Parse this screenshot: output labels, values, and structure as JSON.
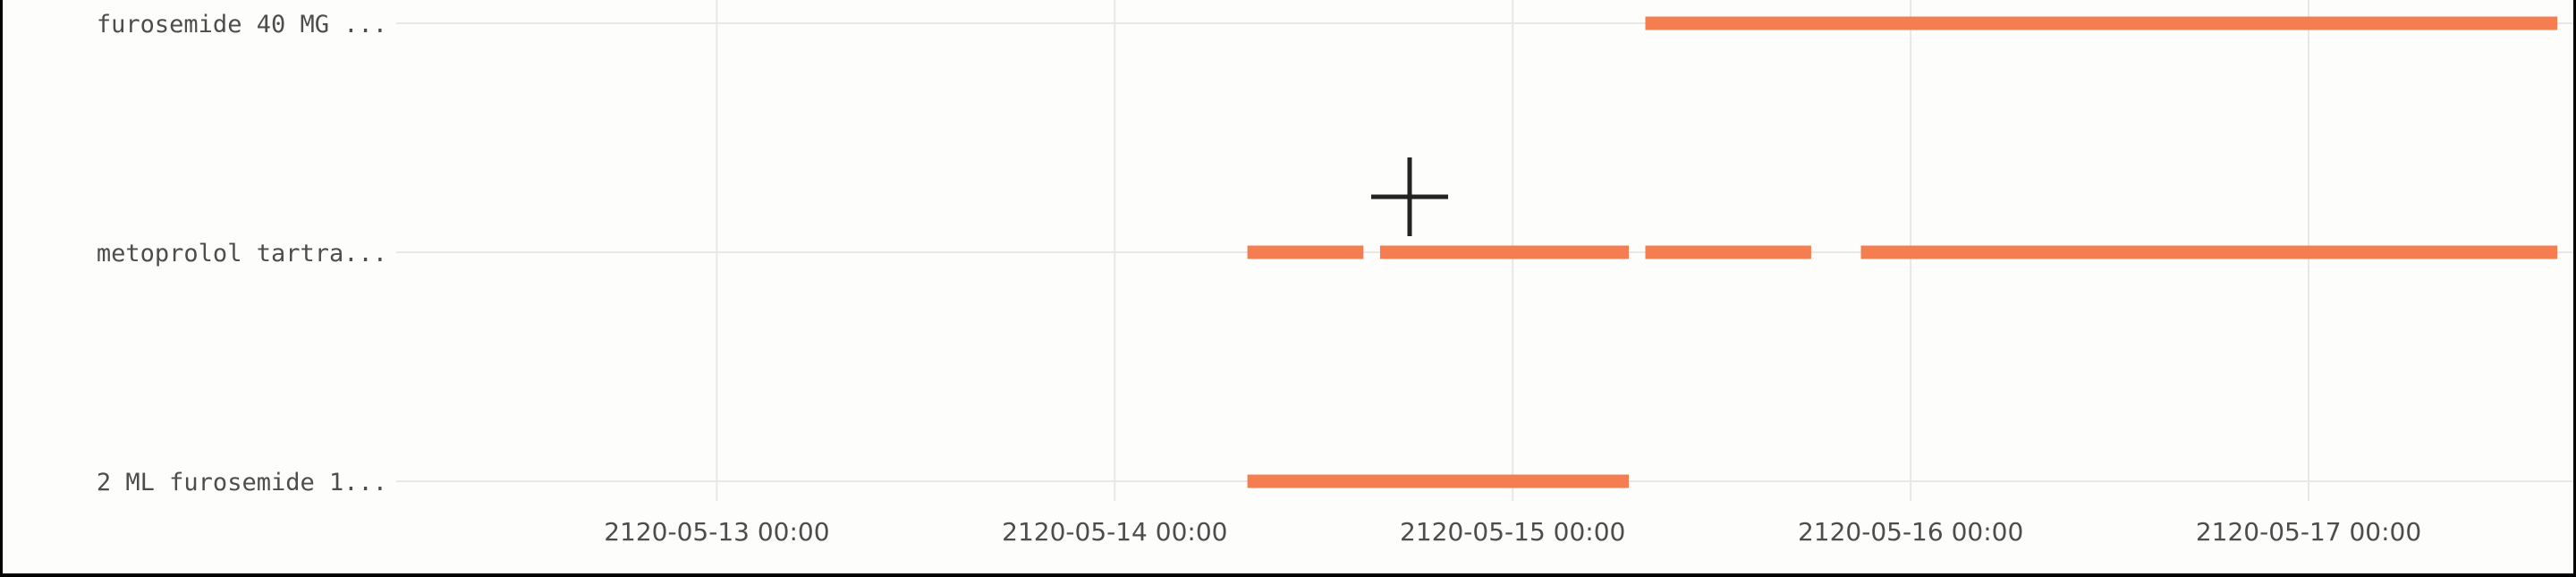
{
  "chart_data": {
    "type": "timeline",
    "title": "",
    "xlabel": "",
    "ylabel": "",
    "grid": true,
    "legend": "none",
    "bar_color": "#f47e4f",
    "x_ticks": [
      "2120-05-13 00:00",
      "2120-05-14 00:00",
      "2120-05-15 00:00",
      "2120-05-16 00:00",
      "2120-05-17 00:00"
    ],
    "xlim": [
      "2120-05-12 04:40",
      "2120-05-17 15:45"
    ],
    "categories": [
      "furosemide 40 MG ...",
      "metoprolol tartra...",
      "2 ML furosemide 1..."
    ],
    "series": [
      {
        "category": "furosemide 40 MG ...",
        "intervals": [
          [
            "2120-05-15 08:00",
            "2120-05-17 15:00"
          ]
        ]
      },
      {
        "category": "metoprolol tartra...",
        "intervals": [
          [
            "2120-05-14 08:00",
            "2120-05-14 15:00"
          ],
          [
            "2120-05-14 16:00",
            "2120-05-15 07:00"
          ],
          [
            "2120-05-15 08:00",
            "2120-05-15 18:00"
          ],
          [
            "2120-05-15 21:00",
            "2120-05-17 15:00"
          ]
        ]
      },
      {
        "category": "2 ML furosemide 1...",
        "intervals": [
          [
            "2120-05-14 08:00",
            "2120-05-15 07:00"
          ]
        ]
      }
    ]
  },
  "cursor": {
    "icon": "crosshair-icon"
  }
}
